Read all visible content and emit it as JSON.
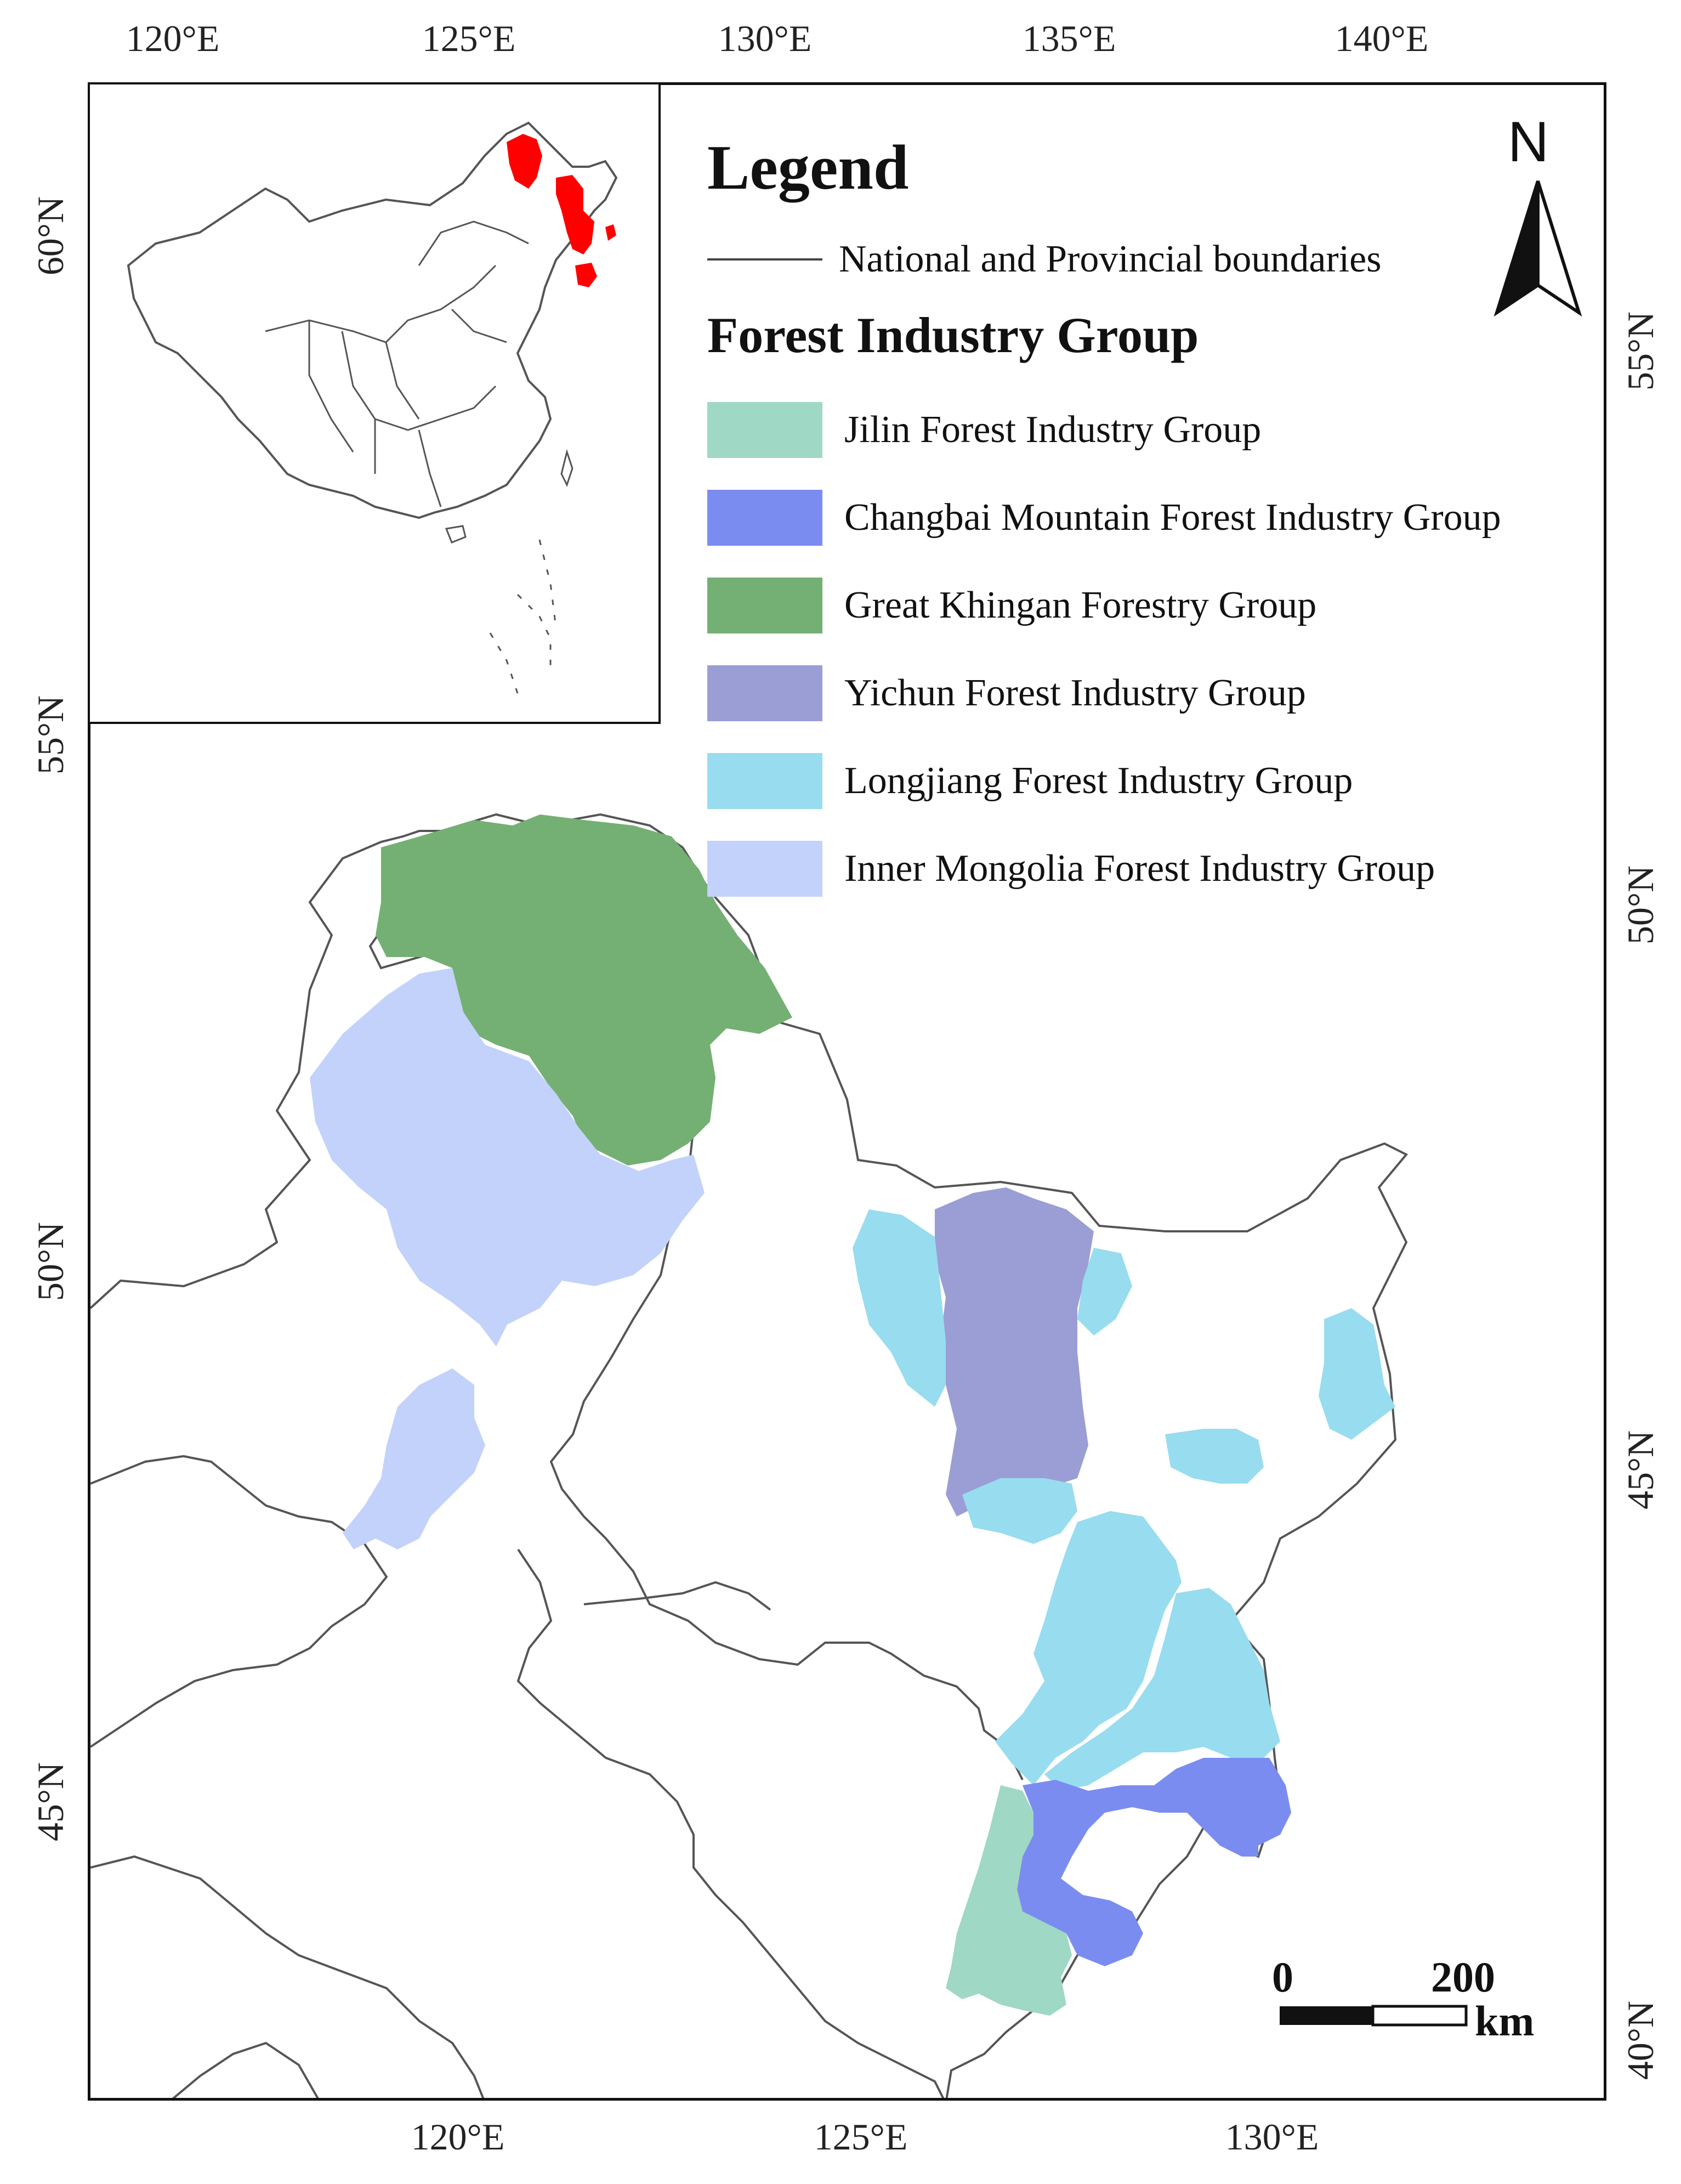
{
  "axes": {
    "top_ticks": [
      "120°E",
      "125°E",
      "130°E",
      "135°E",
      "140°E"
    ],
    "bottom_ticks": [
      "120°E",
      "125°E",
      "130°E"
    ],
    "left_ticks": [
      "60°N",
      "55°N",
      "50°N",
      "45°N"
    ],
    "right_ticks": [
      "55°N",
      "50°N",
      "45°N",
      "40°N"
    ]
  },
  "legend": {
    "title": "Legend",
    "boundary_label": "National and Provincial boundaries",
    "group_title": "Forest Industry Group",
    "items": [
      {
        "label": "Jilin Forest Industry Group",
        "color": "#9fd8c4"
      },
      {
        "label": "Changbai Mountain Forest Industry Group",
        "color": "#7b8cf0"
      },
      {
        "label": "Great Khingan Forestry Group",
        "color": "#74b073"
      },
      {
        "label": "Yichun Forest Industry Group",
        "color": "#9a9ed4"
      },
      {
        "label": "Longjiang Forest Industry Group",
        "color": "#98dcf0"
      },
      {
        "label": "Inner Mongolia Forest Industry Group",
        "color": "#c2d2fa"
      }
    ]
  },
  "north_arrow": {
    "label": "N"
  },
  "scale_bar": {
    "start": "0",
    "end": "200",
    "unit": "km"
  },
  "inset": {
    "highlight_color": "#ff0000"
  },
  "boundary_color": "#555555"
}
